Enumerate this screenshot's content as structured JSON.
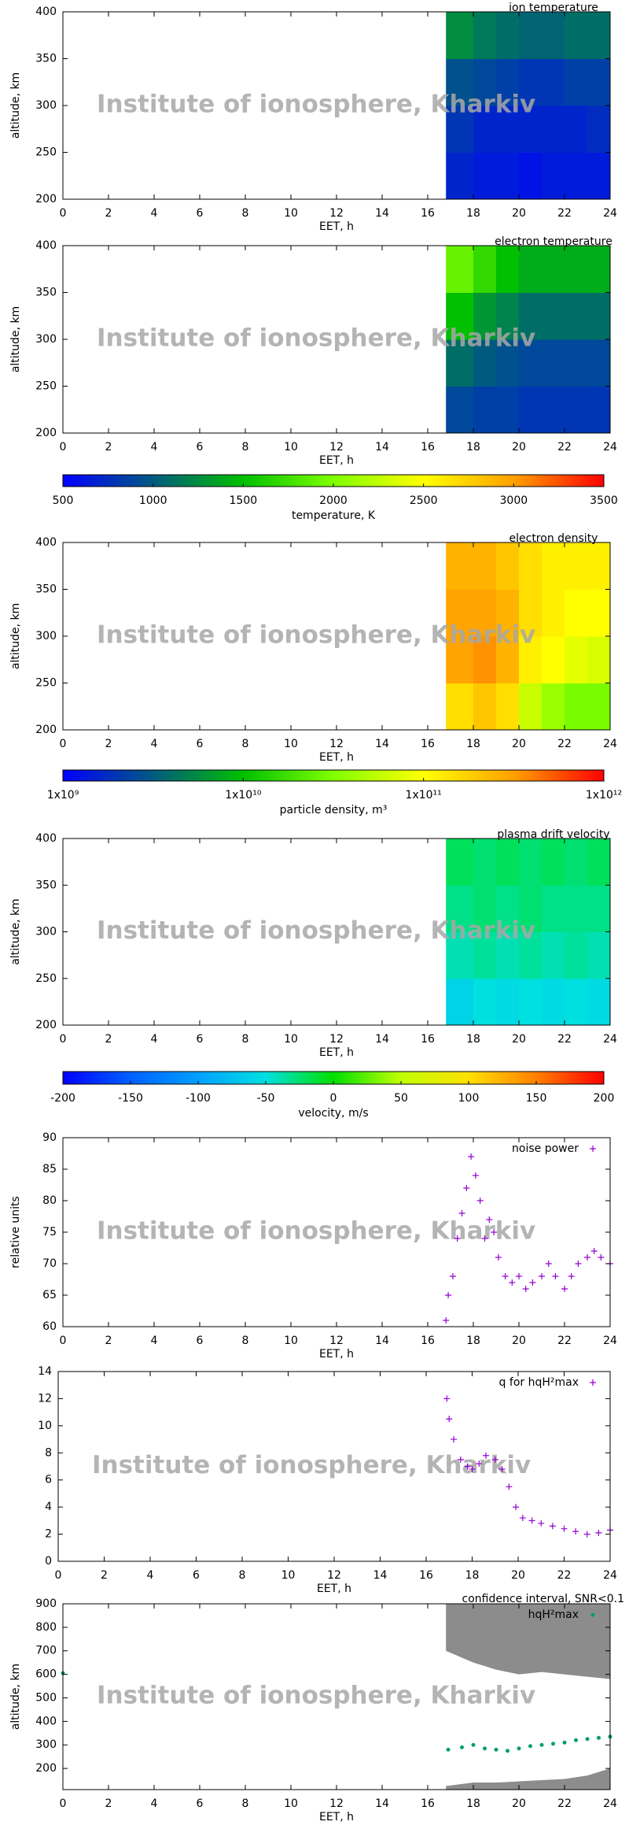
{
  "chart_data": [
    {
      "type": "heatmap",
      "title": "ion temperature",
      "xlabel": "EET, h",
      "ylabel": "altitude, km",
      "watermark": "Institute of ionosphere, Kharkiv",
      "xlim": [
        0,
        24
      ],
      "xticks": [
        0,
        2,
        4,
        6,
        8,
        10,
        12,
        14,
        16,
        18,
        20,
        22,
        24
      ],
      "ylim": [
        200,
        400
      ],
      "yticks": [
        200,
        250,
        300,
        350,
        400
      ],
      "xbins": [
        16.8,
        18,
        19,
        20,
        21,
        22,
        23,
        24
      ],
      "ybins": [
        200,
        250,
        300,
        350,
        400
      ],
      "values": [
        [
          700,
          650,
          650,
          600,
          650,
          650,
          650
        ],
        [
          800,
          700,
          700,
          700,
          700,
          700,
          750
        ],
        [
          950,
          900,
          850,
          800,
          800,
          850,
          850
        ],
        [
          1250,
          1150,
          1100,
          1050,
          1050,
          1100,
          1100
        ]
      ]
    },
    {
      "type": "heatmap",
      "title": "electron temperature",
      "xlabel": "EET, h",
      "ylabel": "altitude, km",
      "watermark": "Institute of ionosphere, Kharkiv",
      "xlim": [
        0,
        24
      ],
      "xticks": [
        0,
        2,
        4,
        6,
        8,
        10,
        12,
        14,
        16,
        18,
        20,
        22,
        24
      ],
      "ylim": [
        200,
        400
      ],
      "yticks": [
        200,
        250,
        300,
        350,
        400
      ],
      "xbins": [
        16.8,
        18,
        19,
        20,
        21,
        22,
        23,
        24
      ],
      "ybins": [
        200,
        250,
        300,
        350,
        400
      ],
      "values": [
        [
          900,
          850,
          850,
          800,
          800,
          800,
          800
        ],
        [
          1100,
          1000,
          950,
          900,
          900,
          900,
          900
        ],
        [
          1500,
          1300,
          1200,
          1100,
          1100,
          1100,
          1100
        ],
        [
          1900,
          1700,
          1500,
          1400,
          1400,
          1400,
          1400
        ]
      ]
    },
    {
      "type": "colorbar",
      "label": "temperature, K",
      "zlim": [
        500,
        3500
      ],
      "zticks": [
        500,
        1000,
        1500,
        2000,
        2500,
        3000,
        3500
      ],
      "colors": [
        "#0000ff",
        "#005a80",
        "#00c000",
        "#80ff00",
        "#ffff00",
        "#ffa000",
        "#ff0000"
      ]
    },
    {
      "type": "heatmap",
      "title": "electron density",
      "xlabel": "EET, h",
      "ylabel": "altitude, km",
      "watermark": "Institute of ionosphere, Kharkiv",
      "xlim": [
        0,
        24
      ],
      "xticks": [
        0,
        2,
        4,
        6,
        8,
        10,
        12,
        14,
        16,
        18,
        20,
        22,
        24
      ],
      "ylim": [
        200,
        400
      ],
      "yticks": [
        200,
        250,
        300,
        350,
        400
      ],
      "xbins": [
        16.8,
        18,
        19,
        20,
        21,
        22,
        23,
        24
      ],
      "ybins": [
        200,
        250,
        300,
        350,
        400
      ],
      "values": [
        [
          150000000000,
          200000000000,
          150000000000,
          60000000000,
          40000000000,
          30000000000,
          30000000000
        ],
        [
          300000000000,
          350000000000,
          250000000000,
          120000000000,
          100000000000,
          80000000000,
          70000000000
        ],
        [
          300000000000,
          300000000000,
          250000000000,
          150000000000,
          120000000000,
          100000000000,
          100000000000
        ],
        [
          250000000000,
          250000000000,
          200000000000,
          150000000000,
          120000000000,
          120000000000,
          120000000000
        ]
      ]
    },
    {
      "type": "colorbar",
      "label": "particle density, m³",
      "log": true,
      "zlim": [
        1000000000,
        1000000000000
      ],
      "zticks": [
        {
          "value": 1000000000,
          "label": "1x10⁹"
        },
        {
          "value": 10000000000,
          "label": "1x10¹⁰"
        },
        {
          "value": 100000000000,
          "label": "1x10¹¹"
        },
        {
          "value": 1000000000000,
          "label": "1x10¹²"
        }
      ],
      "colors": [
        "#0000ff",
        "#005a80",
        "#00c000",
        "#80ff00",
        "#ffff00",
        "#ffa000",
        "#ff0000"
      ]
    },
    {
      "type": "heatmap",
      "title": "plasma drift velocity",
      "xlabel": "EET, h",
      "ylabel": "altitude, km",
      "watermark": "Institute of ionosphere, Kharkiv",
      "xlim": [
        0,
        24
      ],
      "xticks": [
        0,
        2,
        4,
        6,
        8,
        10,
        12,
        14,
        16,
        18,
        20,
        22,
        24
      ],
      "ylim": [
        200,
        400
      ],
      "yticks": [
        200,
        250,
        300,
        350,
        400
      ],
      "xbins": [
        16.8,
        18,
        19,
        20,
        21,
        22,
        23,
        24
      ],
      "ybins": [
        200,
        250,
        300,
        350,
        400
      ],
      "values": [
        [
          -60,
          -50,
          -55,
          -50,
          -55,
          -50,
          -55
        ],
        [
          -40,
          -35,
          -40,
          -35,
          -40,
          -35,
          -40
        ],
        [
          -30,
          -25,
          -30,
          -25,
          -30,
          -30,
          -30
        ],
        [
          -20,
          -25,
          -20,
          -25,
          -20,
          -25,
          -20
        ]
      ]
    },
    {
      "type": "colorbar",
      "label": "velocity, m/s",
      "zlim": [
        -200,
        200
      ],
      "zticks": [
        -200,
        -150,
        -100,
        -50,
        0,
        50,
        100,
        150,
        200
      ],
      "colors": [
        "#0000ff",
        "#0060ff",
        "#00a0ff",
        "#00e0e0",
        "#00e000",
        "#c0ff00",
        "#ffe000",
        "#ff8000",
        "#ff0000"
      ]
    },
    {
      "type": "scatter",
      "xlabel": "EET, h",
      "ylabel": "relative units",
      "watermark": "Institute of ionosphere, Kharkiv",
      "xlim": [
        0,
        24
      ],
      "xticks": [
        0,
        2,
        4,
        6,
        8,
        10,
        12,
        14,
        16,
        18,
        20,
        22,
        24
      ],
      "ylim": [
        60,
        90
      ],
      "yticks": [
        60,
        65,
        70,
        75,
        80,
        85,
        90
      ],
      "series": [
        {
          "name": "noise power",
          "color": "#9400d3",
          "marker": "plus",
          "x": [
            16.8,
            16.9,
            17.1,
            17.3,
            17.5,
            17.7,
            17.9,
            18.1,
            18.3,
            18.5,
            18.7,
            18.9,
            19.1,
            19.4,
            19.7,
            20,
            20.3,
            20.6,
            21,
            21.3,
            21.6,
            22,
            22.3,
            22.6,
            23,
            23.3,
            23.6,
            24
          ],
          "values": [
            61,
            65,
            68,
            74,
            78,
            82,
            87,
            84,
            80,
            74,
            77,
            75,
            71,
            68,
            67,
            68,
            66,
            67,
            68,
            70,
            68,
            66,
            68,
            70,
            71,
            72,
            71,
            70
          ]
        }
      ]
    },
    {
      "type": "scatter",
      "xlabel": "EET, h",
      "watermark": "Institute of ionosphere, Kharkiv",
      "xlim": [
        0,
        24
      ],
      "xticks": [
        0,
        2,
        4,
        6,
        8,
        10,
        12,
        14,
        16,
        18,
        20,
        22,
        24
      ],
      "ylim": [
        0,
        14
      ],
      "yticks": [
        0,
        2,
        4,
        6,
        8,
        10,
        12,
        14
      ],
      "series": [
        {
          "name": "q for hqH²max",
          "color": "#9400d3",
          "marker": "plus",
          "x": [
            16.9,
            17,
            17.2,
            17.5,
            17.8,
            18,
            18.3,
            18.6,
            19,
            19.3,
            19.6,
            19.9,
            20.2,
            20.6,
            21,
            21.5,
            22,
            22.5,
            23,
            23.5,
            24
          ],
          "values": [
            12,
            10.5,
            9,
            7.5,
            7,
            6.8,
            7.2,
            7.8,
            7.5,
            6.8,
            5.5,
            4,
            3.2,
            3,
            2.8,
            2.6,
            2.4,
            2.2,
            2,
            2.1,
            2.3
          ]
        }
      ]
    },
    {
      "type": "scatter",
      "xlabel": "EET, h",
      "ylabel": "altitude, km",
      "watermark": "Institute of ionosphere, Kharkiv",
      "xlim": [
        0,
        24
      ],
      "xticks": [
        0,
        2,
        4,
        6,
        8,
        10,
        12,
        14,
        16,
        18,
        20,
        22,
        24
      ],
      "ylim": [
        110,
        900
      ],
      "yticks": [
        200,
        300,
        400,
        500,
        600,
        700,
        800,
        900
      ],
      "series": [
        {
          "name": "confidence interval, SNR<0.1",
          "color": "#8c8c8c",
          "x": [
            16.8,
            18,
            19,
            20,
            21,
            22,
            23,
            24
          ],
          "low": [
            125,
            140,
            140,
            145,
            150,
            155,
            170,
            200
          ],
          "high": [
            700,
            650,
            620,
            600,
            610,
            600,
            590,
            580
          ]
        },
        {
          "name": "hqH²max",
          "color": "#009e73",
          "marker": "circle",
          "x": [
            0,
            16.9,
            17.5,
            18,
            18.5,
            19,
            19.5,
            20,
            20.5,
            21,
            21.5,
            22,
            22.5,
            23,
            23.5,
            24
          ],
          "values": [
            605,
            280,
            290,
            300,
            285,
            280,
            275,
            285,
            295,
            300,
            305,
            310,
            320,
            325,
            330,
            335
          ]
        }
      ]
    }
  ]
}
